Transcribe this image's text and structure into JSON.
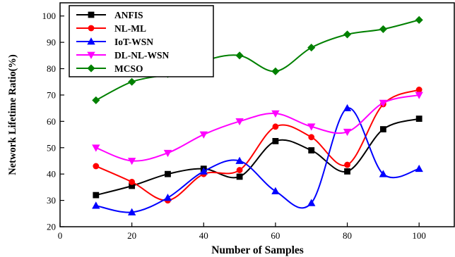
{
  "chart_data": {
    "type": "line",
    "title": "",
    "xlabel": "Number of Samples",
    "ylabel": "Network Lifetime Ratio(%)",
    "xlim": [
      0,
      110
    ],
    "ylim": [
      20,
      105
    ],
    "xticks": [
      0,
      20,
      40,
      60,
      80,
      100
    ],
    "yticks": [
      20,
      30,
      40,
      50,
      60,
      70,
      80,
      90,
      100
    ],
    "grid": false,
    "legend_position": "top-left",
    "x": [
      10,
      20,
      30,
      40,
      50,
      60,
      70,
      80,
      90,
      100
    ],
    "series": [
      {
        "name": "ANFIS",
        "color": "#000000",
        "marker": "square",
        "values": [
          32,
          35.5,
          40,
          42,
          39,
          52.5,
          49,
          41,
          57,
          61
        ]
      },
      {
        "name": "NL-ML",
        "color": "#ff0000",
        "marker": "circle",
        "values": [
          43,
          37,
          30,
          40,
          41.5,
          58,
          54,
          43.5,
          66.5,
          72
        ]
      },
      {
        "name": "IoT-WSN",
        "color": "#0000ff",
        "marker": "triangle-up",
        "values": [
          28,
          25.5,
          31,
          41,
          45,
          33.5,
          29,
          65,
          40,
          42
        ]
      },
      {
        "name": "DL-NL-WSN",
        "color": "#ff00ff",
        "marker": "triangle-down",
        "values": [
          50,
          45,
          48,
          55,
          60,
          63,
          58,
          56,
          67,
          70
        ]
      },
      {
        "name": "MCSO",
        "color": "#008000",
        "marker": "diamond",
        "values": [
          68,
          75,
          78,
          83,
          85,
          79,
          88,
          93,
          95,
          98.5
        ]
      }
    ]
  }
}
